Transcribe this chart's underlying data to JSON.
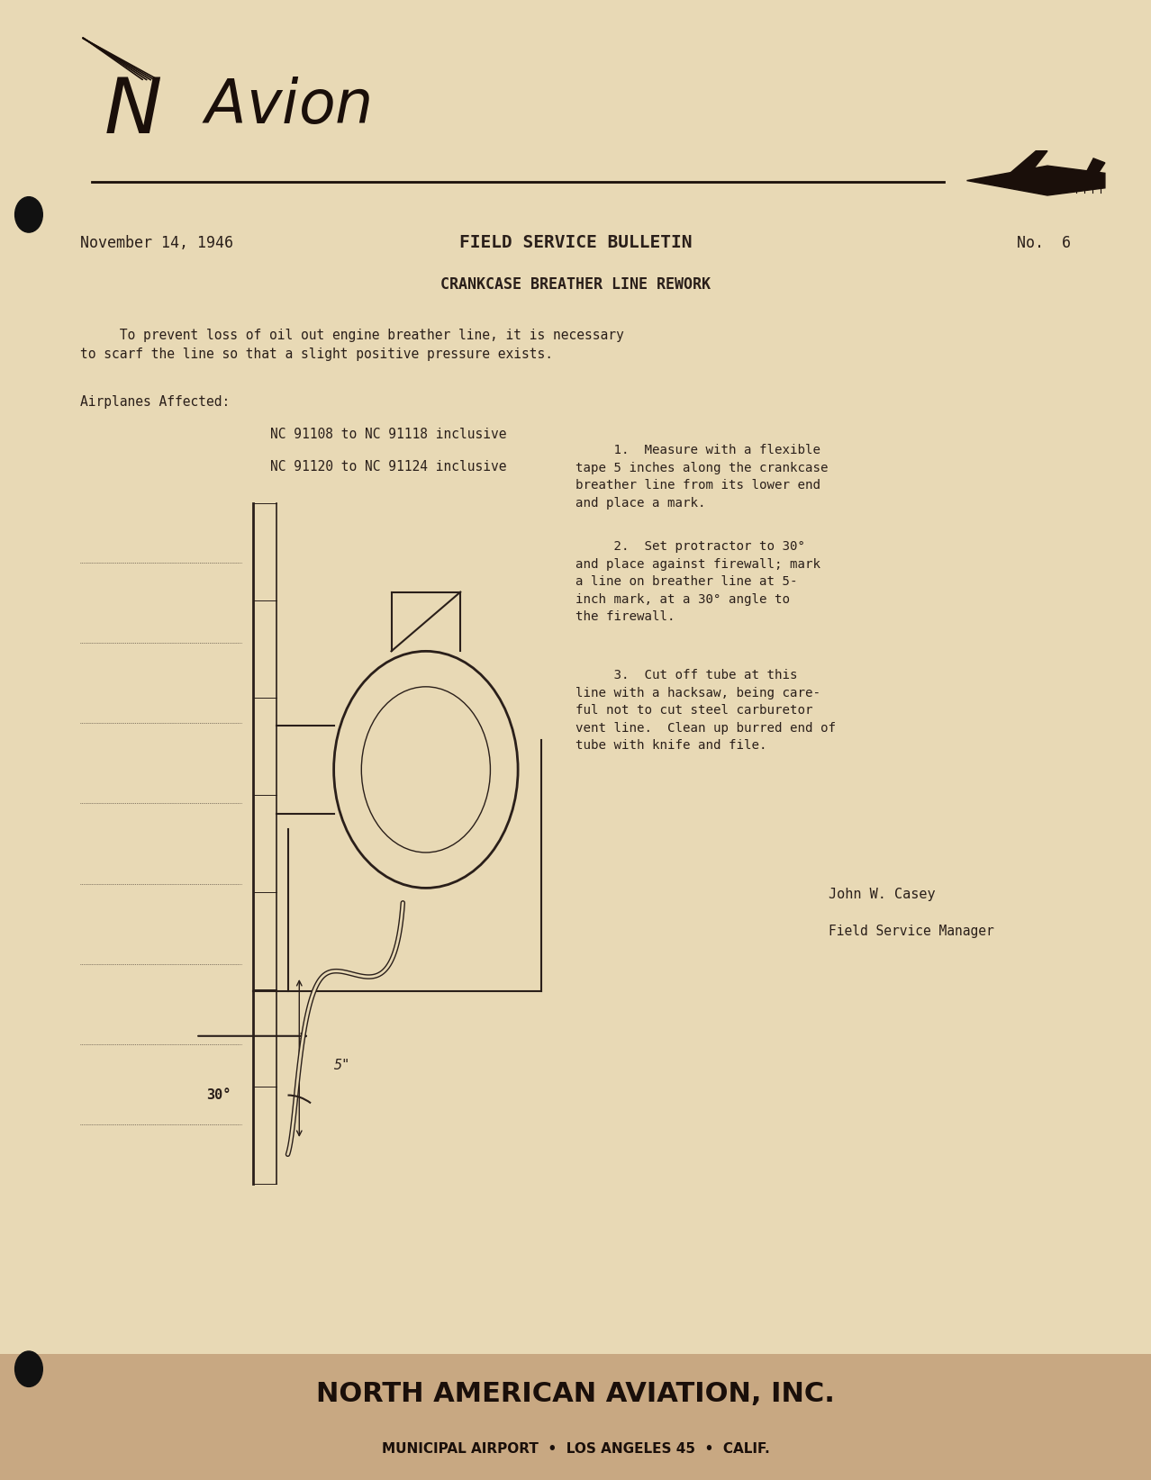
{
  "bg_color": "#e8d9b5",
  "text_color": "#2a1f1a",
  "dark_color": "#1a0f0a",
  "page_width": 12.78,
  "page_height": 16.44,
  "date_text": "November 14, 1946",
  "bulletin_title": "FIELD SERVICE BULLETIN",
  "bulletin_number": "No.  6",
  "subtitle": "CRANKCASE BREATHER LINE REWORK",
  "body_text_1": "     To prevent loss of oil out engine breather line, it is necessary\nto scarf the line so that a slight positive pressure exists.",
  "airplanes_label": "Airplanes Affected:",
  "aircraft_1": "        NC 91108 to NC 91118 inclusive",
  "aircraft_2": "        NC 91120 to NC 91124 inclusive",
  "step1": "     1.  Measure with a flexible\ntape 5 inches along the crankcase\nbreather line from its lower end\nand place a mark.",
  "step2": "     2.  Set protractor to 30°\nand place against firewall; mark\na line on breather line at 5-\ninch mark, at a 30° angle to\nthe firewall.",
  "step3": "     3.  Cut off tube at this\nline with a hacksaw, being care-\nful not to cut steel carburetor\nvent line.  Clean up burred end of\ntube with knife and file.",
  "signature_name": "John W. Casey",
  "signature_title": "Field Service Manager",
  "footer_line1": "NORTH AMERICAN AVIATION, INC.",
  "footer_line2": "MUNICIPAL AIRPORT  •  LOS ANGELES 45  •  CALIF.",
  "footer_bg": "#c8a882",
  "logo_text": "NAvion",
  "angle_label": "30°",
  "length_label": "5\""
}
